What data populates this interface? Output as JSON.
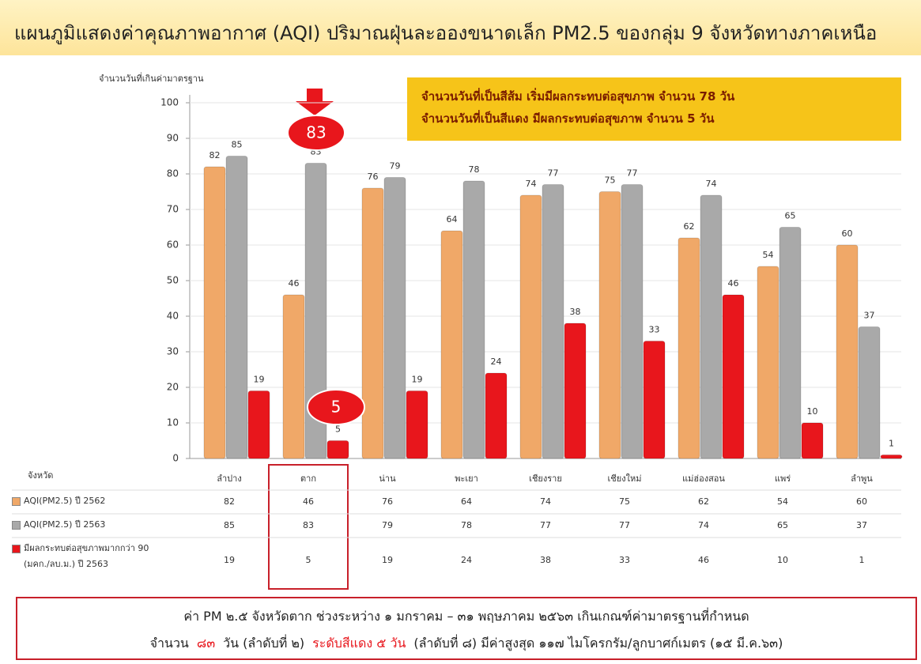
{
  "chart_data": {
    "type": "bar",
    "title": "แผนภูมิแสดงค่าคุณภาพอากาศ (AQI) ปริมาณฝุ่นละอองขนาดเล็ก PM2.5 ของกลุ่ม 9 จังหวัดทางภาคเหนือ",
    "y_label": "จำนวนวันที่เกินค่ามาตรฐาน",
    "table_header": "จังหวัด",
    "categories": [
      "ลำปาง",
      "ตาก",
      "น่าน",
      "พะเยา",
      "เชียงราย",
      "เชียงใหม่",
      "แม่ฮ่องสอน",
      "แพร่",
      "ลำพูน"
    ],
    "series": [
      {
        "name": "AQI(PM2.5) ปี 2562",
        "color": "#f0a868",
        "values": [
          82,
          46,
          76,
          64,
          74,
          75,
          62,
          54,
          60
        ]
      },
      {
        "name": "AQI(PM2.5) ปี 2563",
        "color": "#a9a9a9",
        "values": [
          85,
          83,
          79,
          78,
          77,
          77,
          74,
          65,
          37
        ]
      },
      {
        "name": "มีผลกระทบต่อสุขภาพมากกว่า 90 (มคก./ลบ.ม.) ปี 2563",
        "color": "#e8161c",
        "values": [
          19,
          5,
          19,
          24,
          38,
          33,
          46,
          10,
          1
        ]
      }
    ],
    "ylim": [
      0,
      100
    ],
    "yticks": [
      0,
      10,
      20,
      30,
      40,
      50,
      60,
      70,
      80,
      90,
      100
    ],
    "grid": true,
    "annotations": [
      "จำนวนวันที่เป็นสีส้ม เริ่มมีผลกระทบต่อสุขภาพ จำนวน 78 วัน",
      "จำนวนวันที่เป็นสีแดง มีผลกระทบต่อสุขภาพ จำนวน 5 วัน"
    ],
    "footer": {
      "line1": "ค่า PM ๒.๕ จังหวัดตาก  ช่วงระหว่าง ๑ มกราคม – ๓๑ พฤษภาคม ๒๕๖๓ เกินเกณฑ์ค่ามาตรฐานที่กำหนด",
      "line2": [
        {
          "text": "จำนวน",
          "color": "#222222"
        },
        {
          "text": "๘๓",
          "color": "#e8161c"
        },
        {
          "text": "วัน (ลำดับที่ ๒)",
          "color": "#222222"
        },
        {
          "text": "ระดับสีแดง  ๕ วัน",
          "color": "#e8161c"
        },
        {
          "text": "(ลำดับที่ ๘) มีค่าสูงสุด ๑๑๗ ไมโครกรัม/ลูกบาศก์เมตร (๑๕ มี.ค.๖๓)",
          "color": "#222222"
        }
      ]
    }
  }
}
